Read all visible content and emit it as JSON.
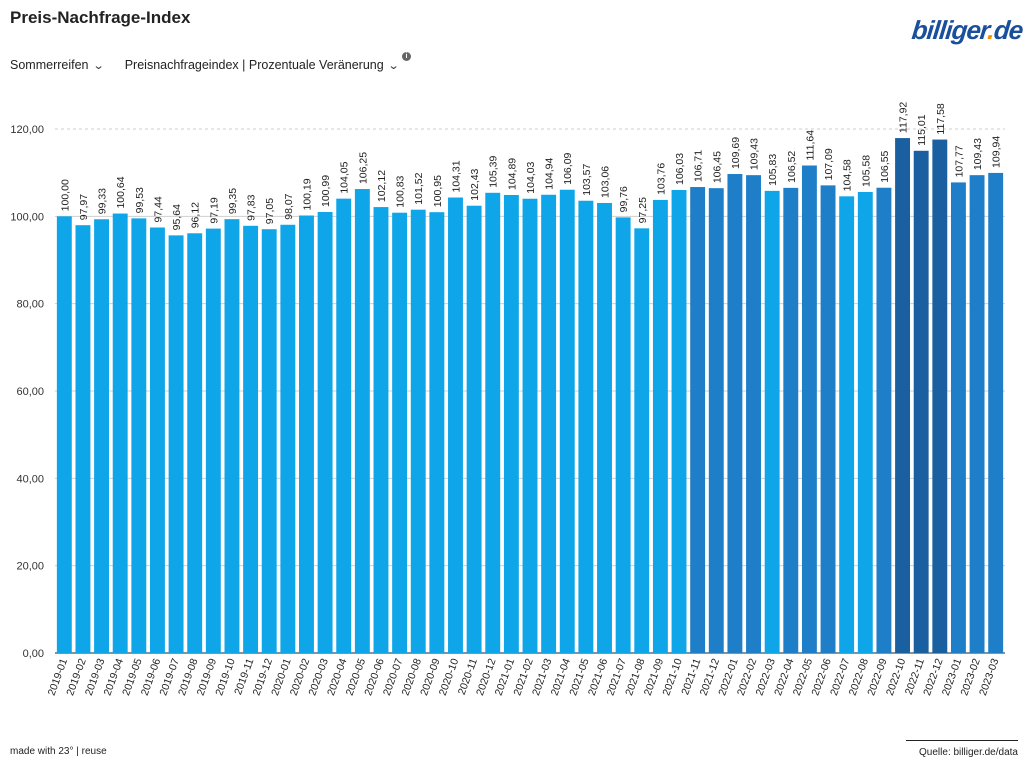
{
  "header": {
    "title": "Preis-Nachfrage-Index",
    "logo_parts": [
      "billiger",
      ".",
      "de"
    ]
  },
  "controls": {
    "category_label": "Sommerreifen",
    "metric_label": "Preisnachfrageindex | Prozentuale Veränerung",
    "info_symbol": "i"
  },
  "footer": {
    "made_with": "made with 23° | reuse",
    "source": "Quelle: billiger.de/data"
  },
  "colors": {
    "light_bar": "#0ea5e9",
    "mid_bar": "#1e7ec8",
    "dark_bar": "#1a5fa0",
    "grid": "#cfcfcf"
  },
  "chart_data": {
    "type": "bar",
    "title": "Preis-Nachfrage-Index",
    "xlabel": "",
    "ylabel": "",
    "ylim": [
      0,
      120
    ],
    "yticks": [
      0,
      20,
      40,
      60,
      80,
      100,
      120
    ],
    "ytick_labels": [
      "0,00",
      "20,00",
      "40,00",
      "60,00",
      "80,00",
      "100,00",
      "120,00"
    ],
    "grid": true,
    "categories": [
      "2019-01",
      "2019-02",
      "2019-03",
      "2019-04",
      "2019-05",
      "2019-06",
      "2019-07",
      "2019-08",
      "2019-09",
      "2019-10",
      "2019-11",
      "2019-12",
      "2020-01",
      "2020-02",
      "2020-03",
      "2020-04",
      "2020-05",
      "2020-06",
      "2020-07",
      "2020-08",
      "2020-09",
      "2020-10",
      "2020-11",
      "2020-12",
      "2021-01",
      "2021-02",
      "2021-03",
      "2021-04",
      "2021-05",
      "2021-06",
      "2021-07",
      "2021-08",
      "2021-09",
      "2021-10",
      "2021-11",
      "2021-12",
      "2022-01",
      "2022-02",
      "2022-03",
      "2022-04",
      "2022-05",
      "2022-06",
      "2022-07",
      "2022-08",
      "2022-09",
      "2022-10",
      "2022-11",
      "2022-12",
      "2023-01",
      "2023-02",
      "2023-03"
    ],
    "values": [
      100.0,
      97.97,
      99.33,
      100.64,
      99.53,
      97.44,
      95.64,
      96.12,
      97.19,
      99.35,
      97.83,
      97.05,
      98.07,
      100.19,
      100.99,
      104.05,
      106.25,
      102.12,
      100.83,
      101.52,
      100.95,
      104.31,
      102.43,
      105.39,
      104.89,
      104.03,
      104.94,
      106.09,
      103.57,
      103.06,
      99.76,
      97.25,
      103.76,
      106.03,
      106.71,
      106.45,
      109.69,
      109.43,
      105.83,
      106.52,
      111.64,
      107.09,
      104.58,
      105.58,
      106.55,
      117.92,
      115.01,
      117.58,
      107.77,
      109.43,
      109.94
    ],
    "value_labels": [
      "100,00",
      "97,97",
      "99,33",
      "100,64",
      "99,53",
      "97,44",
      "95,64",
      "96,12",
      "97,19",
      "99,35",
      "97,83",
      "97,05",
      "98,07",
      "100,19",
      "100,99",
      "104,05",
      "106,25",
      "102,12",
      "100,83",
      "101,52",
      "100,95",
      "104,31",
      "102,43",
      "105,39",
      "104,89",
      "104,03",
      "104,94",
      "106,09",
      "103,57",
      "103,06",
      "99,76",
      "97,25",
      "103,76",
      "106,03",
      "106,71",
      "106,45",
      "109,69",
      "109,43",
      "105,83",
      "106,52",
      "111,64",
      "107,09",
      "104,58",
      "105,58",
      "106,55",
      "117,92",
      "115,01",
      "117,58",
      "107,77",
      "109,43",
      "109,94"
    ]
  }
}
